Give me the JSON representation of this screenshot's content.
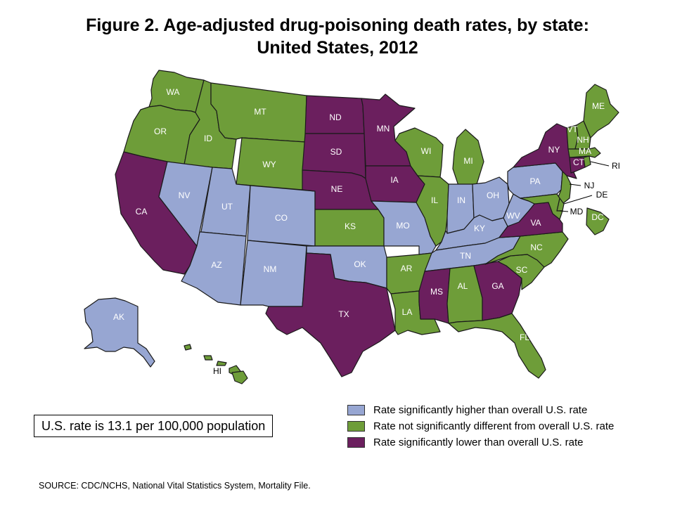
{
  "title": {
    "line1": "Figure 2. Age-adjusted drug-poisoning death rates, by state:",
    "line2": "United States, 2012"
  },
  "colors": {
    "higher": "#97a6d2",
    "not_different": "#6e9d39",
    "lower": "#6b1f5e",
    "border": "#1a1a1a"
  },
  "us_rate_note": "U.S. rate is 13.1 per 100,000 population",
  "legend": [
    {
      "category": "higher",
      "label": "Rate significantly higher than overall U.S. rate"
    },
    {
      "category": "not_different",
      "label": "Rate not significantly different from overall U.S. rate"
    },
    {
      "category": "lower",
      "label": "Rate significantly lower than overall U.S. rate"
    }
  ],
  "states": {
    "WA": {
      "label": "WA",
      "category": "not_different"
    },
    "OR": {
      "label": "OR",
      "category": "not_different"
    },
    "CA": {
      "label": "CA",
      "category": "lower"
    },
    "ID": {
      "label": "ID",
      "category": "not_different"
    },
    "NV": {
      "label": "NV",
      "category": "higher"
    },
    "MT": {
      "label": "MT",
      "category": "not_different"
    },
    "WY": {
      "label": "WY",
      "category": "not_different"
    },
    "UT": {
      "label": "UT",
      "category": "higher"
    },
    "AZ": {
      "label": "AZ",
      "category": "higher"
    },
    "CO": {
      "label": "CO",
      "category": "higher"
    },
    "NM": {
      "label": "NM",
      "category": "higher"
    },
    "ND": {
      "label": "ND",
      "category": "lower"
    },
    "SD": {
      "label": "SD",
      "category": "lower"
    },
    "NE": {
      "label": "NE",
      "category": "lower"
    },
    "KS": {
      "label": "KS",
      "category": "not_different"
    },
    "OK": {
      "label": "OK",
      "category": "higher"
    },
    "TX": {
      "label": "TX",
      "category": "lower"
    },
    "MN": {
      "label": "MN",
      "category": "lower"
    },
    "IA": {
      "label": "IA",
      "category": "lower"
    },
    "MO": {
      "label": "MO",
      "category": "higher"
    },
    "AR": {
      "label": "AR",
      "category": "not_different"
    },
    "LA": {
      "label": "LA",
      "category": "not_different"
    },
    "WI": {
      "label": "WI",
      "category": "not_different"
    },
    "IL": {
      "label": "IL",
      "category": "not_different"
    },
    "MI": {
      "label": "MI",
      "category": "not_different"
    },
    "IN": {
      "label": "IN",
      "category": "higher"
    },
    "OH": {
      "label": "OH",
      "category": "higher"
    },
    "KY": {
      "label": "KY",
      "category": "higher"
    },
    "TN": {
      "label": "TN",
      "category": "higher"
    },
    "MS": {
      "label": "MS",
      "category": "lower"
    },
    "AL": {
      "label": "AL",
      "category": "not_different"
    },
    "GA": {
      "label": "GA",
      "category": "lower"
    },
    "FL": {
      "label": "FL",
      "category": "not_different"
    },
    "SC": {
      "label": "SC",
      "category": "not_different"
    },
    "NC": {
      "label": "NC",
      "category": "not_different"
    },
    "VA": {
      "label": "VA",
      "category": "lower"
    },
    "WV": {
      "label": "WV",
      "category": "higher"
    },
    "PA": {
      "label": "PA",
      "category": "higher"
    },
    "NY": {
      "label": "NY",
      "category": "lower"
    },
    "VT": {
      "label": "VT",
      "category": "not_different"
    },
    "NH": {
      "label": "NH",
      "category": "not_different"
    },
    "ME": {
      "label": "ME",
      "category": "not_different"
    },
    "MA": {
      "label": "MA",
      "category": "not_different"
    },
    "RI": {
      "label": "RI",
      "category": "not_different"
    },
    "CT": {
      "label": "CT",
      "category": "lower"
    },
    "NJ": {
      "label": "NJ",
      "category": "not_different"
    },
    "DE": {
      "label": "DE",
      "category": "not_different"
    },
    "MD": {
      "label": "MD",
      "category": "not_different"
    },
    "DC": {
      "label": "DC",
      "category": "not_different"
    },
    "AK": {
      "label": "AK",
      "category": "higher"
    },
    "HI": {
      "label": "HI",
      "category": "not_different"
    }
  },
  "source": "SOURCE: CDC/NCHS, National Vital Statistics System, Mortality File."
}
